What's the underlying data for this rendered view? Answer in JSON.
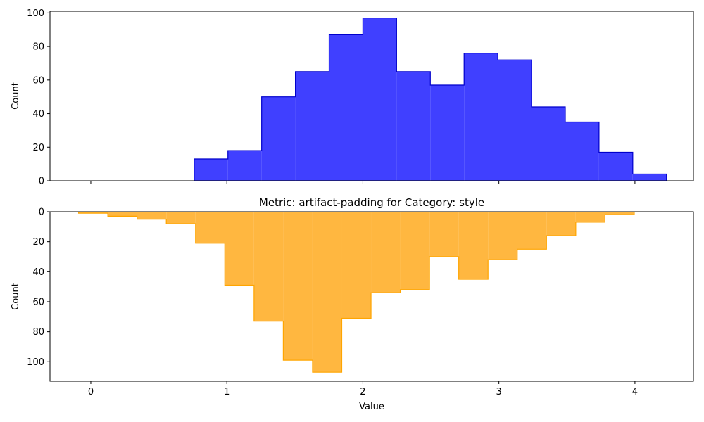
{
  "chart_data": [
    {
      "type": "histogram",
      "title": "",
      "xlabel": "",
      "ylabel": "Count",
      "xlim": [
        -0.3,
        4.43
      ],
      "ylim": [
        0,
        101
      ],
      "x_ticks": [
        "0",
        "1",
        "2",
        "3",
        "4"
      ],
      "y_ticks": [
        "0",
        "20",
        "40",
        "60",
        "80",
        "100"
      ],
      "y_inverted": false,
      "fill_color": "#4040ff",
      "edge_color": "#0000cc",
      "bin_edges": [
        0.76,
        1.008,
        1.256,
        1.504,
        1.752,
        2.0,
        2.248,
        2.496,
        2.744,
        2.992,
        3.24,
        3.488,
        3.736,
        3.984,
        4.232
      ],
      "counts": [
        13,
        18,
        50,
        65,
        87,
        97,
        65,
        57,
        76,
        72,
        44,
        35,
        17,
        4
      ]
    },
    {
      "type": "histogram",
      "title": "Metric: artifact-padding for Category: style",
      "xlabel": "Value",
      "ylabel": "Count",
      "xlim": [
        -0.3,
        4.43
      ],
      "ylim": [
        0,
        113
      ],
      "x_ticks": [
        "0",
        "1",
        "2",
        "3",
        "4"
      ],
      "y_ticks": [
        "0",
        "20",
        "40",
        "60",
        "80",
        "100"
      ],
      "y_inverted": true,
      "fill_color": "#ffb740",
      "edge_color": "#ffa500",
      "bin_edges": [
        -0.09,
        0.125,
        0.34,
        0.555,
        0.77,
        0.985,
        1.2,
        1.415,
        1.63,
        1.845,
        2.06,
        2.275,
        2.49,
        2.705,
        2.92,
        3.135,
        3.35,
        3.565,
        3.78,
        3.995
      ],
      "counts": [
        1,
        3,
        5,
        8,
        21,
        49,
        73,
        99,
        107,
        71,
        54,
        52,
        30,
        45,
        32,
        25,
        16,
        7,
        2
      ]
    }
  ]
}
